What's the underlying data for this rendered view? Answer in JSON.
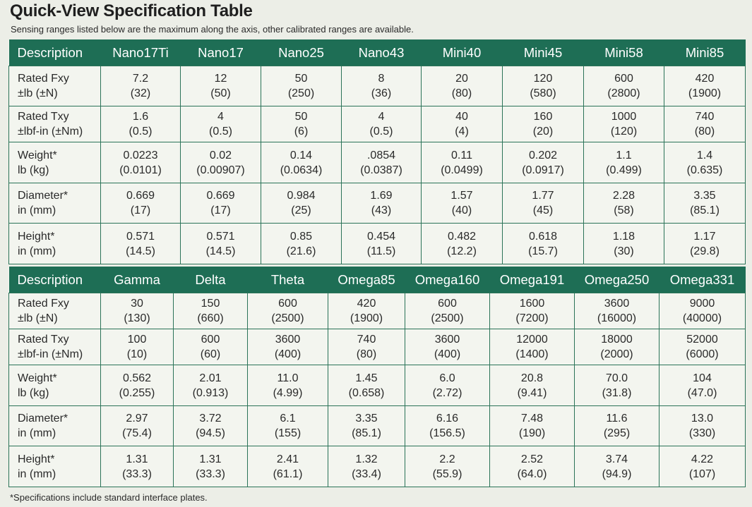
{
  "title": "Quick-View Specification Table",
  "subtitle": "Sensing ranges listed below are the maximum along the axis, other calibrated ranges are available.",
  "footnote": "*Specifications include standard interface plates.",
  "colors": {
    "header_bg": "#1e6e55",
    "header_text": "#ffffff",
    "grid": "#2b7358",
    "page_bg": "#eceee7"
  },
  "tables": [
    {
      "headers": [
        "Description",
        "Nano17Ti",
        "Nano17",
        "Nano25",
        "Nano43",
        "Mini40",
        "Mini45",
        "Mini58",
        "Mini85"
      ],
      "rows": [
        {
          "label": [
            "Rated Fxy",
            "±lb (±N)"
          ],
          "cells": [
            [
              "7.2",
              "(32)"
            ],
            [
              "12",
              "(50)"
            ],
            [
              "50",
              "(250)"
            ],
            [
              "8",
              "(36)"
            ],
            [
              "20",
              "(80)"
            ],
            [
              "120",
              "(580)"
            ],
            [
              "600",
              "(2800)"
            ],
            [
              "420",
              "(1900)"
            ]
          ]
        },
        {
          "label": [
            "Rated Txy",
            "±lbf-in (±Nm)"
          ],
          "cells": [
            [
              "1.6",
              "(0.5)"
            ],
            [
              "4",
              "(0.5)"
            ],
            [
              "50",
              "(6)"
            ],
            [
              "4",
              "(0.5)"
            ],
            [
              "40",
              "(4)"
            ],
            [
              "160",
              "(20)"
            ],
            [
              "1000",
              "(120)"
            ],
            [
              "740",
              "(80)"
            ]
          ]
        },
        {
          "label": [
            "Weight*",
            "lb (kg)"
          ],
          "cells": [
            [
              "0.0223",
              "(0.0101)"
            ],
            [
              "0.02",
              "(0.00907)"
            ],
            [
              "0.14",
              "(0.0634)"
            ],
            [
              ".0854",
              "(0.0387)"
            ],
            [
              "0.11",
              "(0.0499)"
            ],
            [
              "0.202",
              "(0.0917)"
            ],
            [
              "1.1",
              "(0.499)"
            ],
            [
              "1.4",
              "(0.635)"
            ]
          ]
        },
        {
          "label": [
            "Diameter*",
            "in (mm)"
          ],
          "cells": [
            [
              "0.669",
              "(17)"
            ],
            [
              "0.669",
              "(17)"
            ],
            [
              "0.984",
              "(25)"
            ],
            [
              "1.69",
              "(43)"
            ],
            [
              "1.57",
              "(40)"
            ],
            [
              "1.77",
              "(45)"
            ],
            [
              "2.28",
              "(58)"
            ],
            [
              "3.35",
              "(85.1)"
            ]
          ]
        },
        {
          "label": [
            "Height*",
            "in (mm)"
          ],
          "cells": [
            [
              "0.571",
              "(14.5)"
            ],
            [
              "0.571",
              "(14.5)"
            ],
            [
              "0.85",
              "(21.6)"
            ],
            [
              "0.454",
              "(11.5)"
            ],
            [
              "0.482",
              "(12.2)"
            ],
            [
              "0.618",
              "(15.7)"
            ],
            [
              "1.18",
              "(30)"
            ],
            [
              "1.17",
              "(29.8)"
            ]
          ]
        }
      ]
    },
    {
      "headers": [
        "Description",
        "Gamma",
        "Delta",
        "Theta",
        "Omega85",
        "Omega160",
        "Omega191",
        "Omega250",
        "Omega331"
      ],
      "rows": [
        {
          "label": [
            "Rated Fxy",
            "±lb (±N)"
          ],
          "cells": [
            [
              "30",
              "(130)"
            ],
            [
              "150",
              "(660)"
            ],
            [
              "600",
              "(2500)"
            ],
            [
              "420",
              "(1900)"
            ],
            [
              "600",
              "(2500)"
            ],
            [
              "1600",
              "(7200)"
            ],
            [
              "3600",
              "(16000)"
            ],
            [
              "9000",
              "(40000)"
            ]
          ]
        },
        {
          "label": [
            "Rated Txy",
            "±lbf-in (±Nm)"
          ],
          "cells": [
            [
              "100",
              "(10)"
            ],
            [
              "600",
              "(60)"
            ],
            [
              "3600",
              "(400)"
            ],
            [
              "740",
              "(80)"
            ],
            [
              "3600",
              "(400)"
            ],
            [
              "12000",
              "(1400)"
            ],
            [
              "18000",
              "(2000)"
            ],
            [
              "52000",
              "(6000)"
            ]
          ]
        },
        {
          "label": [
            "Weight*",
            "lb (kg)"
          ],
          "cells": [
            [
              "0.562",
              "(0.255)"
            ],
            [
              "2.01",
              "(0.913)"
            ],
            [
              "11.0",
              "(4.99)"
            ],
            [
              "1.45",
              "(0.658)"
            ],
            [
              "6.0",
              "(2.72)"
            ],
            [
              "20.8",
              "(9.41)"
            ],
            [
              "70.0",
              "(31.8)"
            ],
            [
              "104",
              "(47.0)"
            ]
          ]
        },
        {
          "label": [
            "Diameter*",
            "in (mm)"
          ],
          "cells": [
            [
              "2.97",
              "(75.4)"
            ],
            [
              "3.72",
              "(94.5)"
            ],
            [
              "6.1",
              "(155)"
            ],
            [
              "3.35",
              "(85.1)"
            ],
            [
              "6.16",
              "(156.5)"
            ],
            [
              "7.48",
              "(190)"
            ],
            [
              "11.6",
              "(295)"
            ],
            [
              "13.0",
              "(330)"
            ]
          ]
        },
        {
          "label": [
            "Height*",
            "in (mm)"
          ],
          "cells": [
            [
              "1.31",
              "(33.3)"
            ],
            [
              "1.31",
              "(33.3)"
            ],
            [
              "2.41",
              "(61.1)"
            ],
            [
              "1.32",
              "(33.4)"
            ],
            [
              "2.2",
              "(55.9)"
            ],
            [
              "2.52",
              "(64.0)"
            ],
            [
              "3.74",
              "(94.9)"
            ],
            [
              "4.22",
              "(107)"
            ]
          ]
        }
      ]
    }
  ]
}
